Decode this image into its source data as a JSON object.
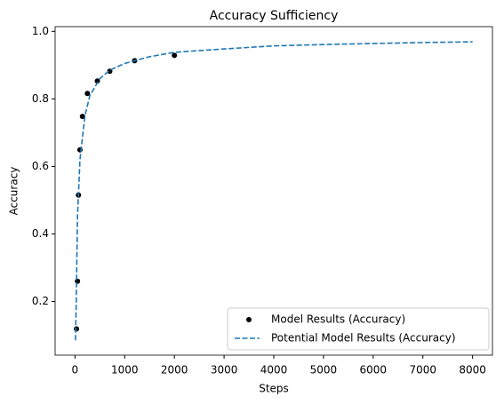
{
  "chart_data": {
    "type": "scatter-line",
    "title": "Accuracy Sufficiency",
    "x_label": "Steps",
    "y_label": "Accuracy",
    "series": [
      {
        "name": "Model Results (Accuracy)",
        "kind": "scatter",
        "color": "#000000",
        "x": [
          30,
          50,
          70,
          100,
          150,
          250,
          450,
          700,
          1200,
          2000
        ],
        "values": [
          0.119,
          0.26,
          0.515,
          0.649,
          0.748,
          0.816,
          0.853,
          0.882,
          0.913,
          0.929
        ]
      },
      {
        "name": "Potential Model Results (Accuracy)",
        "kind": "dashed-line",
        "color": "#1f77b4",
        "x": [
          10,
          25,
          50,
          100,
          200,
          300,
          500,
          700,
          1000,
          1500,
          2000,
          3000,
          4000,
          5000,
          6000,
          7000,
          8000
        ],
        "values": [
          0.085,
          0.2,
          0.45,
          0.62,
          0.75,
          0.81,
          0.86,
          0.885,
          0.905,
          0.925,
          0.938,
          0.948,
          0.957,
          0.961,
          0.964,
          0.967,
          0.969
        ]
      }
    ],
    "xlim": [
      -400,
      8400
    ],
    "ylim": [
      0.041,
      1.014
    ],
    "xticks": [
      0,
      1000,
      2000,
      3000,
      4000,
      5000,
      6000,
      7000,
      8000
    ],
    "yticks": [
      0.2,
      0.4,
      0.6,
      0.8,
      {
        "value": 1.0,
        "label": "1.0"
      }
    ],
    "grid": false,
    "legend": "lower-right"
  }
}
